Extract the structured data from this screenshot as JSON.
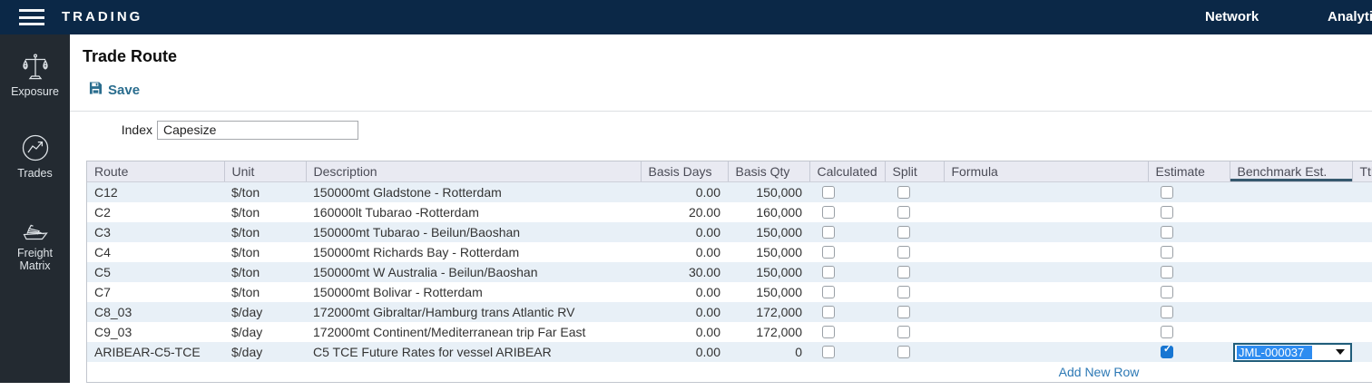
{
  "topbar": {
    "title": "TRADING",
    "links": [
      {
        "label": "Network"
      },
      {
        "label": "Analytics"
      }
    ]
  },
  "sidebar": {
    "items": [
      {
        "label": "Exposure",
        "icon": "scales-icon"
      },
      {
        "label": "Trades",
        "icon": "line-chart-icon"
      },
      {
        "label": "Freight Matrix",
        "icon": "ship-icon"
      }
    ]
  },
  "page": {
    "title": "Trade Route"
  },
  "toolbar": {
    "save_label": "Save",
    "save_icon": "floppy-disk-icon"
  },
  "form": {
    "index_label": "Index",
    "index_value": "Capesize"
  },
  "table": {
    "columns": [
      "Route",
      "Unit",
      "Description",
      "Basis Days",
      "Basis Qty",
      "Calculated",
      "Split",
      "Formula",
      "Estimate",
      "Benchmark Est.",
      "Ttl"
    ],
    "rows": [
      {
        "route": "C12",
        "unit": "$/ton",
        "description": "150000mt Gladstone - Rotterdam",
        "basis_days": "0.00",
        "basis_qty": "150,000",
        "calculated": false,
        "split": false,
        "formula": "",
        "estimate": false,
        "benchmark": ""
      },
      {
        "route": "C2",
        "unit": "$/ton",
        "description": "160000lt Tubarao -Rotterdam",
        "basis_days": "20.00",
        "basis_qty": "160,000",
        "calculated": false,
        "split": false,
        "formula": "",
        "estimate": false,
        "benchmark": ""
      },
      {
        "route": "C3",
        "unit": "$/ton",
        "description": "150000mt Tubarao - Beilun/Baoshan",
        "basis_days": "0.00",
        "basis_qty": "150,000",
        "calculated": false,
        "split": false,
        "formula": "",
        "estimate": false,
        "benchmark": ""
      },
      {
        "route": "C4",
        "unit": "$/ton",
        "description": "150000mt Richards Bay - Rotterdam",
        "basis_days": "0.00",
        "basis_qty": "150,000",
        "calculated": false,
        "split": false,
        "formula": "",
        "estimate": false,
        "benchmark": ""
      },
      {
        "route": "C5",
        "unit": "$/ton",
        "description": "150000mt W Australia - Beilun/Baoshan",
        "basis_days": "30.00",
        "basis_qty": "150,000",
        "calculated": false,
        "split": false,
        "formula": "",
        "estimate": false,
        "benchmark": ""
      },
      {
        "route": "C7",
        "unit": "$/ton",
        "description": "150000mt Bolivar - Rotterdam",
        "basis_days": "0.00",
        "basis_qty": "150,000",
        "calculated": false,
        "split": false,
        "formula": "",
        "estimate": false,
        "benchmark": ""
      },
      {
        "route": "C8_03",
        "unit": "$/day",
        "description": "172000mt Gibraltar/Hamburg trans Atlantic RV",
        "basis_days": "0.00",
        "basis_qty": "172,000",
        "calculated": false,
        "split": false,
        "formula": "",
        "estimate": false,
        "benchmark": ""
      },
      {
        "route": "C9_03",
        "unit": "$/day",
        "description": "172000mt Continent/Mediterranean trip Far East",
        "basis_days": "0.00",
        "basis_qty": "172,000",
        "calculated": false,
        "split": false,
        "formula": "",
        "estimate": false,
        "benchmark": ""
      },
      {
        "route": "ARIBEAR-C5-TCE",
        "unit": "$/day",
        "description": "C5 TCE Future Rates for vessel ARIBEAR",
        "basis_days": "0.00",
        "basis_qty": "0",
        "calculated": false,
        "split": false,
        "formula": "",
        "estimate": true,
        "benchmark": "JML-000037"
      }
    ],
    "add_row_label": "Add New Row"
  },
  "colors": {
    "topbar_bg": "#0b2847",
    "sidebar_bg": "#232a31",
    "accent_teal": "#2a6d8e",
    "benchmark_underline": "#36596e",
    "header_bg": "#e9eaf2",
    "row_stripe": "#e8f0f7",
    "link_blue": "#2d79b5",
    "checkbox_checked_blue": "#1876d2",
    "selection_blue": "#2e8cf0"
  }
}
